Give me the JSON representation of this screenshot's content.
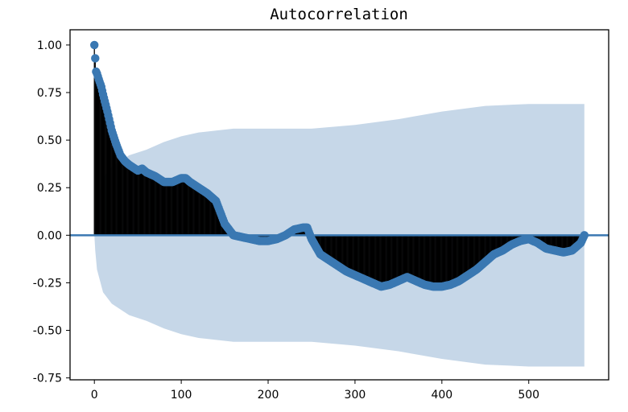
{
  "chart_data": {
    "type": "line",
    "title": "Autocorrelation",
    "xlabel": "",
    "ylabel": "",
    "xlim": [
      -28,
      592
    ],
    "ylim": [
      -0.76,
      1.08
    ],
    "xticks": [
      0,
      100,
      200,
      300,
      400,
      500
    ],
    "xtick_labels": [
      "0",
      "100",
      "200",
      "300",
      "400",
      "500"
    ],
    "yticks": [
      1.0,
      0.75,
      0.5,
      0.25,
      0.0,
      -0.25,
      -0.5,
      -0.75
    ],
    "ytick_labels": [
      "1.00",
      "0.75",
      "0.50",
      "0.25",
      "0.00",
      "-0.25",
      "-0.50",
      "-0.75"
    ],
    "grid": false,
    "legend": "none",
    "colors": {
      "marker": "#3a78b2",
      "stem": "#000000",
      "zero_line": "#3a78b2",
      "confidence_band": "#c6d7e8",
      "axes": "#000000"
    },
    "series": [
      {
        "lags": [
          0,
          1,
          2,
          3,
          5,
          8,
          10,
          15,
          20,
          25,
          30,
          35,
          40,
          50,
          55,
          60,
          70,
          80,
          90,
          100,
          105,
          110,
          120,
          130,
          140,
          150,
          160,
          170,
          180,
          190,
          200,
          210,
          220,
          230,
          240,
          245,
          250,
          260,
          270,
          280,
          290,
          300,
          310,
          320,
          330,
          340,
          350,
          360,
          370,
          380,
          390,
          400,
          410,
          420,
          430,
          440,
          450,
          460,
          470,
          480,
          490,
          500,
          510,
          520,
          530,
          540,
          550,
          560,
          564
        ],
        "acf": [
          1.0,
          0.93,
          0.86,
          0.85,
          0.82,
          0.78,
          0.74,
          0.65,
          0.55,
          0.48,
          0.42,
          0.39,
          0.37,
          0.34,
          0.35,
          0.33,
          0.31,
          0.28,
          0.28,
          0.3,
          0.3,
          0.28,
          0.25,
          0.22,
          0.18,
          0.06,
          0.0,
          -0.01,
          -0.02,
          -0.03,
          -0.03,
          -0.02,
          0.0,
          0.03,
          0.04,
          0.04,
          -0.02,
          -0.1,
          -0.13,
          -0.16,
          -0.19,
          -0.21,
          -0.23,
          -0.25,
          -0.27,
          -0.26,
          -0.24,
          -0.22,
          -0.24,
          -0.26,
          -0.27,
          -0.27,
          -0.26,
          -0.24,
          -0.21,
          -0.18,
          -0.14,
          -0.1,
          -0.08,
          -0.05,
          -0.03,
          -0.02,
          -0.04,
          -0.07,
          -0.08,
          -0.09,
          -0.08,
          -0.04,
          0.0
        ]
      }
    ],
    "confidence_band": {
      "lags": [
        0,
        1,
        3,
        10,
        20,
        30,
        40,
        60,
        80,
        100,
        120,
        140,
        160,
        200,
        250,
        300,
        350,
        400,
        450,
        500,
        564
      ],
      "upper": [
        0.0,
        0.08,
        0.18,
        0.3,
        0.36,
        0.39,
        0.42,
        0.45,
        0.49,
        0.52,
        0.54,
        0.55,
        0.56,
        0.56,
        0.56,
        0.58,
        0.61,
        0.65,
        0.68,
        0.69,
        0.69
      ]
    }
  }
}
